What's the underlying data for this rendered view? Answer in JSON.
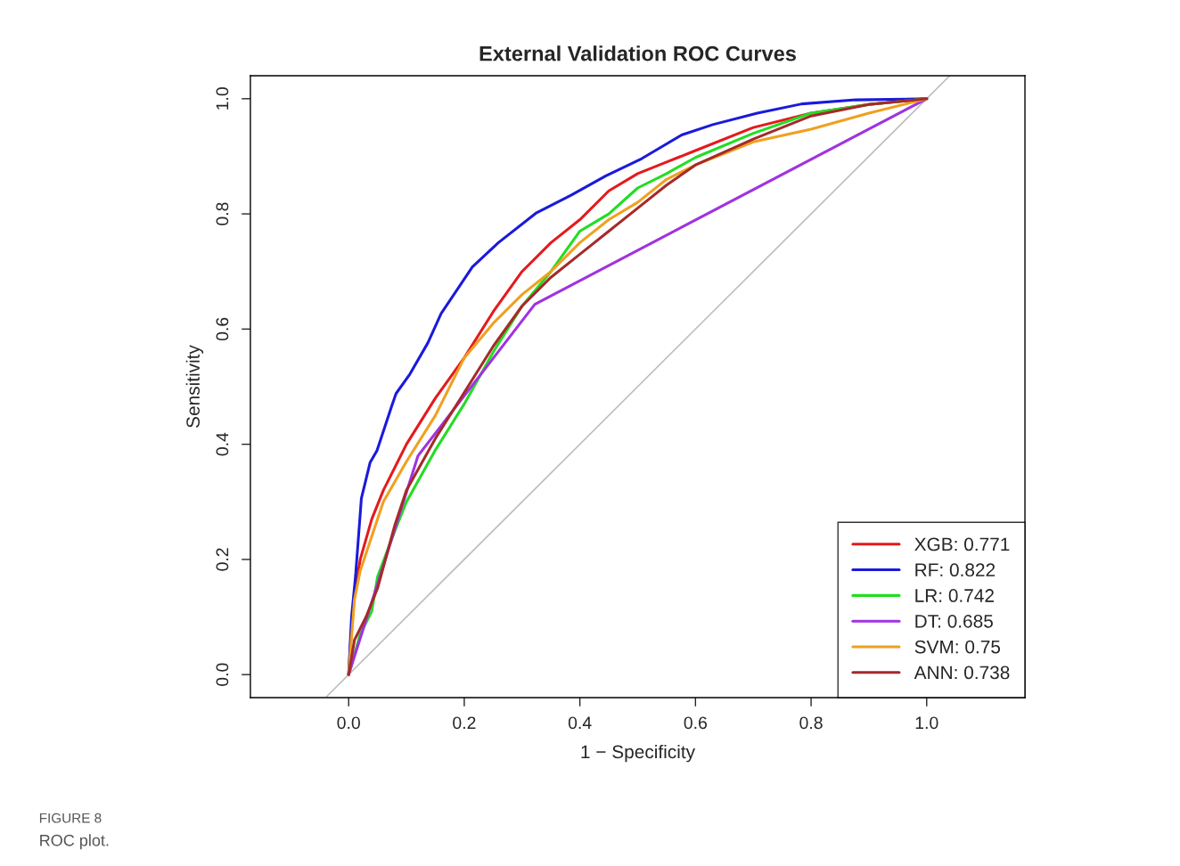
{
  "chart_data": {
    "type": "line",
    "title": "External Validation ROC Curves",
    "xlabel": "1 − Specificity",
    "ylabel": "Sensitivity",
    "xlim": [
      -0.17,
      1.17
    ],
    "ylim": [
      -0.04,
      1.04
    ],
    "xticks": [
      {
        "value": 0,
        "label": "0.0"
      },
      {
        "value": 0.2,
        "label": "0.2"
      },
      {
        "value": 0.4,
        "label": "0.4"
      },
      {
        "value": 0.6,
        "label": "0.6"
      },
      {
        "value": 0.8,
        "label": "0.8"
      },
      {
        "value": 1,
        "label": "1.0"
      }
    ],
    "yticks": [
      {
        "value": 0,
        "label": "0.0"
      },
      {
        "value": 0.2,
        "label": "0.2"
      },
      {
        "value": 0.4,
        "label": "0.4"
      },
      {
        "value": 0.6,
        "label": "0.6"
      },
      {
        "value": 0.8,
        "label": "0.8"
      },
      {
        "value": 1,
        "label": "1.0"
      }
    ],
    "grid": false,
    "legend": "bottom right",
    "marker": "none",
    "line_style": "solid",
    "series": [
      {
        "color": "#bebebe",
        "x": [
          -0.038,
          1.04
        ],
        "values": [
          -0.038,
          1.04
        ]
      },
      {
        "name": "XGB: 0.771",
        "color": "#e41a1c",
        "x": [
          0,
          0.005,
          0.01,
          0.02,
          0.04,
          0.06,
          0.1,
          0.15,
          0.2,
          0.25,
          0.3,
          0.35,
          0.4,
          0.45,
          0.5,
          0.55,
          0.6,
          0.7,
          0.8,
          0.9,
          1
        ],
        "values": [
          0,
          0.08,
          0.14,
          0.2,
          0.27,
          0.32,
          0.4,
          0.48,
          0.55,
          0.63,
          0.7,
          0.75,
          0.79,
          0.84,
          0.87,
          0.89,
          0.91,
          0.95,
          0.975,
          0.99,
          1
        ]
      },
      {
        "name": "RF: 0.822",
        "color": "#1a1adb",
        "x": [
          0,
          0.005,
          0.012,
          0.022,
          0.037,
          0.049,
          0.075,
          0.082,
          0.106,
          0.137,
          0.16,
          0.214,
          0.259,
          0.325,
          0.384,
          0.445,
          0.507,
          0.576,
          0.63,
          0.707,
          0.784,
          0.877,
          1
        ],
        "values": [
          0,
          0.1,
          0.172,
          0.306,
          0.368,
          0.389,
          0.468,
          0.488,
          0.522,
          0.576,
          0.627,
          0.708,
          0.75,
          0.802,
          0.832,
          0.866,
          0.896,
          0.937,
          0.955,
          0.975,
          0.991,
          0.998,
          1
        ]
      },
      {
        "name": "LR: 0.742",
        "color": "#22dd22",
        "x": [
          0,
          0.02,
          0.04,
          0.05,
          0.08,
          0.1,
          0.15,
          0.2,
          0.25,
          0.3,
          0.35,
          0.4,
          0.45,
          0.5,
          0.55,
          0.6,
          0.7,
          0.8,
          0.9,
          1
        ],
        "values": [
          0,
          0.07,
          0.11,
          0.17,
          0.25,
          0.3,
          0.39,
          0.47,
          0.56,
          0.64,
          0.7,
          0.77,
          0.8,
          0.845,
          0.87,
          0.898,
          0.94,
          0.975,
          0.99,
          1
        ]
      },
      {
        "name": "DT: 0.685",
        "color": "#a033e0",
        "x": [
          0,
          0.046,
          0.12,
          0.322,
          1
        ],
        "values": [
          0,
          0.145,
          0.38,
          0.643,
          1
        ]
      },
      {
        "name": "SVM: 0.75",
        "color": "#f0a020",
        "x": [
          0,
          0.01,
          0.02,
          0.04,
          0.06,
          0.1,
          0.15,
          0.2,
          0.25,
          0.3,
          0.35,
          0.4,
          0.45,
          0.5,
          0.55,
          0.6,
          0.65,
          0.7,
          0.8,
          0.9,
          1
        ],
        "values": [
          0,
          0.13,
          0.18,
          0.24,
          0.3,
          0.37,
          0.45,
          0.55,
          0.61,
          0.66,
          0.7,
          0.75,
          0.79,
          0.82,
          0.86,
          0.885,
          0.905,
          0.925,
          0.947,
          0.975,
          1
        ]
      },
      {
        "name": "ANN: 0.738",
        "color": "#a52a2a",
        "x": [
          0,
          0.01,
          0.03,
          0.05,
          0.08,
          0.1,
          0.15,
          0.2,
          0.25,
          0.3,
          0.35,
          0.4,
          0.45,
          0.5,
          0.55,
          0.6,
          0.7,
          0.8,
          0.9,
          1
        ],
        "values": [
          0,
          0.06,
          0.1,
          0.15,
          0.26,
          0.32,
          0.41,
          0.49,
          0.57,
          0.64,
          0.69,
          0.73,
          0.77,
          0.81,
          0.85,
          0.885,
          0.93,
          0.97,
          0.99,
          1
        ]
      }
    ],
    "annotations": [
      "FIGURE 8",
      "ROC plot."
    ]
  }
}
